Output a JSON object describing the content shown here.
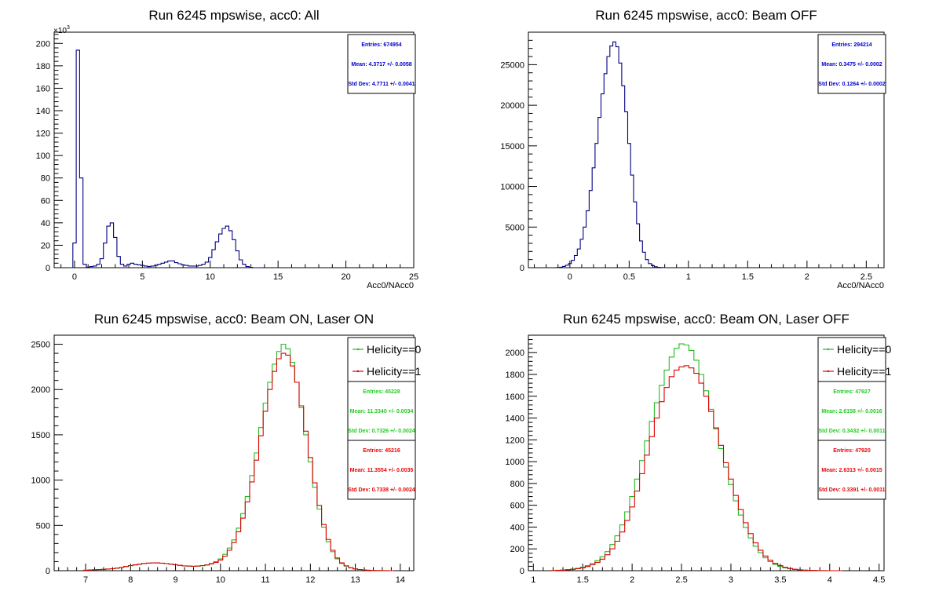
{
  "panels": [
    {
      "title": "Run 6245 mpswise, acc0: All",
      "xlabel": "Acc0/NAcc0",
      "xlim": [
        -1.5,
        25
      ],
      "ylim": [
        0,
        210000
      ],
      "xticks": [
        0,
        5,
        10,
        15,
        20,
        25
      ],
      "yticks": [
        0,
        20000,
        40000,
        60000,
        80000,
        100000,
        120000,
        140000,
        160000,
        180000,
        200000
      ],
      "ytick_labels": [
        "0",
        "20",
        "40",
        "60",
        "80",
        "100",
        "120",
        "140",
        "160",
        "180",
        "200"
      ],
      "yexponent": "×10",
      "yexponent_power": "3",
      "legend": [],
      "stats": [
        {
          "color": "#0000cc",
          "entries": "Entries: 674954",
          "mean": "Mean: 4.3717 +/- 0.0058",
          "std": "Std Dev: 4.7711 +/- 0.0041"
        }
      ]
    },
    {
      "title": "Run 6245 mpswise, acc0: Beam OFF",
      "xlabel": "Acc0/NAcc0",
      "xlim": [
        -0.35,
        2.65
      ],
      "ylim": [
        0,
        29000
      ],
      "xticks": [
        0,
        0.5,
        1,
        1.5,
        2,
        2.5
      ],
      "xtick_labels": [
        "0",
        "0.5",
        "1",
        "1.5",
        "2",
        "2.5"
      ],
      "yticks": [
        0,
        5000,
        10000,
        15000,
        20000,
        25000
      ],
      "ytick_labels": [
        "0",
        "5000",
        "10000",
        "15000",
        "20000",
        "25000"
      ],
      "legend": [],
      "stats": [
        {
          "color": "#0000cc",
          "entries": "Entries: 294214",
          "mean": "Mean: 0.3475 +/- 0.0002",
          "std": "Std Dev: 0.1264 +/- 0.0002"
        }
      ]
    },
    {
      "title": "Run 6245 mpswise, acc0: Beam ON, Laser ON",
      "xlabel": "",
      "xlim": [
        6.3,
        14.3
      ],
      "ylim": [
        0,
        2600
      ],
      "xticks": [
        7,
        8,
        9,
        10,
        11,
        12,
        13,
        14
      ],
      "yticks": [
        0,
        500,
        1000,
        1500,
        2000,
        2500
      ],
      "ytick_labels": [
        "0",
        "500",
        "1000",
        "1500",
        "2000",
        "2500"
      ],
      "legend": [
        {
          "label": "Helicity==0",
          "color": "#22bb22"
        },
        {
          "label": "Helicity==1",
          "color": "#dd0000"
        }
      ],
      "stats": [
        {
          "color": "#22cc22",
          "entries": "Entries: 45228",
          "mean": "Mean: 11.3340 +/- 0.0034",
          "std": "Std Dev: 0.7326 +/- 0.0024"
        },
        {
          "color": "#ee0000",
          "entries": "Entries: 45216",
          "mean": "Mean: 11.3554 +/- 0.0035",
          "std": "Std Dev: 0.7338 +/- 0.0024"
        }
      ]
    },
    {
      "title": "Run 6245 mpswise, acc0: Beam ON, Laser OFF",
      "xlabel": "",
      "xlim": [
        0.95,
        4.55
      ],
      "ylim": [
        0,
        2160
      ],
      "xticks": [
        1,
        1.5,
        2,
        2.5,
        3,
        3.5,
        4,
        4.5
      ],
      "yticks": [
        0,
        200,
        400,
        600,
        800,
        1000,
        1200,
        1400,
        1600,
        1800,
        2000
      ],
      "ytick_labels": [
        "0",
        "200",
        "400",
        "600",
        "800",
        "1000",
        "1200",
        "1400",
        "1600",
        "1800",
        "2000"
      ],
      "legend": [
        {
          "label": "Helicity==0",
          "color": "#22bb22"
        },
        {
          "label": "Helicity==1",
          "color": "#dd0000"
        }
      ],
      "stats": [
        {
          "color": "#22cc22",
          "entries": "Entries: 47927",
          "mean": "Mean: 2.6158 +/- 0.0016",
          "std": "Std Dev: 0.3432 +/- 0.0011"
        },
        {
          "color": "#ee0000",
          "entries": "Entries: 47920",
          "mean": "Mean: 2.6313 +/- 0.0015",
          "std": "Std Dev: 0.3391 +/- 0.0011"
        }
      ]
    }
  ],
  "chart_data": [
    {
      "type": "line",
      "title": "Run 6245 mpswise, acc0: All",
      "xlabel": "Acc0/NAcc0",
      "ylabel": "",
      "xlim": [
        -1.5,
        25
      ],
      "ylim": [
        0,
        210000
      ],
      "step": "histogram",
      "series": [
        {
          "color": "#000080",
          "x": [
            -0.25,
            0,
            0.25,
            0.5,
            0.75,
            1,
            1.25,
            1.5,
            1.75,
            2,
            2.25,
            2.5,
            2.75,
            3,
            3.25,
            3.5,
            3.75,
            4,
            4.25,
            4.5,
            4.75,
            5,
            5.25,
            5.5,
            5.75,
            6,
            6.25,
            6.5,
            6.75,
            7,
            7.25,
            7.5,
            7.75,
            8,
            8.25,
            8.5,
            8.75,
            9,
            9.25,
            9.5,
            9.75,
            10,
            10.25,
            10.5,
            10.75,
            11,
            11.25,
            11.5,
            11.75,
            12,
            12.25,
            12.5,
            12.75,
            13,
            13.25,
            13.5
          ],
          "y": [
            0,
            22000,
            194000,
            80000,
            3000,
            500,
            1000,
            1500,
            3000,
            8000,
            22000,
            37000,
            40000,
            27000,
            10000,
            3000,
            1500,
            3000,
            4000,
            3000,
            2500,
            2000,
            1500,
            1000,
            1500,
            2000,
            3000,
            4000,
            5000,
            6000,
            6000,
            4500,
            3500,
            2500,
            2000,
            1500,
            1500,
            1500,
            2000,
            3000,
            5000,
            9000,
            16000,
            23000,
            30000,
            35000,
            37000,
            33000,
            25000,
            15000,
            7000,
            3000,
            1000,
            300,
            0,
            0
          ]
        }
      ]
    },
    {
      "type": "line",
      "title": "Run 6245 mpswise, acc0: Beam OFF",
      "xlabel": "Acc0/NAcc0",
      "ylabel": "",
      "xlim": [
        -0.35,
        2.65
      ],
      "ylim": [
        0,
        29000
      ],
      "step": "histogram",
      "series": [
        {
          "color": "#000080",
          "x": [
            -0.1,
            -0.075,
            -0.05,
            -0.025,
            0,
            0.025,
            0.05,
            0.075,
            0.1,
            0.125,
            0.15,
            0.175,
            0.2,
            0.225,
            0.25,
            0.275,
            0.3,
            0.325,
            0.35,
            0.375,
            0.4,
            0.425,
            0.45,
            0.475,
            0.5,
            0.525,
            0.55,
            0.575,
            0.6,
            0.625,
            0.65,
            0.675,
            0.7,
            0.725,
            0.75,
            0.775,
            0.8
          ],
          "y": [
            20,
            60,
            150,
            300,
            500,
            900,
            1500,
            2300,
            3500,
            5000,
            7000,
            9500,
            12300,
            15300,
            18500,
            21400,
            23900,
            26000,
            27300,
            27800,
            27200,
            25200,
            22400,
            19200,
            15300,
            11400,
            8100,
            5400,
            3300,
            1900,
            1000,
            500,
            250,
            120,
            50,
            20,
            0
          ]
        }
      ]
    },
    {
      "type": "line",
      "title": "Run 6245 mpswise, acc0: Beam ON, Laser ON",
      "xlabel": "",
      "ylabel": "",
      "xlim": [
        6.3,
        14.3
      ],
      "ylim": [
        0,
        2600
      ],
      "step": "histogram",
      "series": [
        {
          "name": "Helicity==0",
          "color": "#22bb22",
          "x": [
            7,
            7.1,
            7.2,
            7.3,
            7.4,
            7.5,
            7.6,
            7.7,
            7.8,
            7.9,
            8,
            8.1,
            8.2,
            8.3,
            8.4,
            8.5,
            8.6,
            8.7,
            8.8,
            8.9,
            9,
            9.1,
            9.2,
            9.3,
            9.4,
            9.5,
            9.6,
            9.7,
            9.8,
            9.9,
            10,
            10.1,
            10.2,
            10.3,
            10.4,
            10.5,
            10.6,
            10.7,
            10.8,
            10.9,
            11,
            11.1,
            11.2,
            11.3,
            11.4,
            11.5,
            11.6,
            11.7,
            11.8,
            11.9,
            12,
            12.1,
            12.2,
            12.3,
            12.4,
            12.5,
            12.6,
            12.7,
            12.8,
            12.9,
            13,
            13.1,
            13.2,
            13.3,
            13.4,
            13.5,
            13.6,
            13.7,
            13.8
          ],
          "y": [
            5,
            8,
            10,
            12,
            15,
            18,
            22,
            28,
            35,
            45,
            55,
            62,
            70,
            78,
            82,
            85,
            85,
            82,
            78,
            72,
            65,
            58,
            52,
            50,
            48,
            50,
            55,
            65,
            80,
            100,
            130,
            180,
            250,
            340,
            470,
            630,
            820,
            1050,
            1300,
            1580,
            1850,
            2080,
            2280,
            2420,
            2500,
            2450,
            2300,
            2080,
            1800,
            1500,
            1200,
            920,
            680,
            480,
            320,
            210,
            130,
            80,
            50,
            30,
            18,
            12,
            8,
            5,
            3,
            2,
            1,
            1,
            0
          ]
        },
        {
          "name": "Helicity==1",
          "color": "#dd0000",
          "x": [
            7,
            7.1,
            7.2,
            7.3,
            7.4,
            7.5,
            7.6,
            7.7,
            7.8,
            7.9,
            8,
            8.1,
            8.2,
            8.3,
            8.4,
            8.5,
            8.6,
            8.7,
            8.8,
            8.9,
            9,
            9.1,
            9.2,
            9.3,
            9.4,
            9.5,
            9.6,
            9.7,
            9.8,
            9.9,
            10,
            10.1,
            10.2,
            10.3,
            10.4,
            10.5,
            10.6,
            10.7,
            10.8,
            10.9,
            11,
            11.1,
            11.2,
            11.3,
            11.4,
            11.5,
            11.6,
            11.7,
            11.8,
            11.9,
            12,
            12.1,
            12.2,
            12.3,
            12.4,
            12.5,
            12.6,
            12.7,
            12.8,
            12.9,
            13,
            13.1,
            13.2,
            13.3,
            13.4,
            13.5,
            13.6,
            13.7,
            13.8
          ],
          "y": [
            5,
            8,
            10,
            12,
            15,
            18,
            22,
            28,
            36,
            46,
            56,
            64,
            72,
            80,
            84,
            87,
            86,
            83,
            79,
            73,
            66,
            59,
            53,
            51,
            49,
            51,
            56,
            62,
            75,
            92,
            118,
            160,
            225,
            310,
            430,
            580,
            760,
            980,
            1220,
            1490,
            1760,
            2000,
            2200,
            2340,
            2400,
            2380,
            2260,
            2080,
            1820,
            1540,
            1250,
            970,
            720,
            510,
            345,
            225,
            140,
            86,
            54,
            33,
            20,
            13,
            8,
            5,
            3,
            2,
            1,
            1,
            0
          ]
        }
      ]
    },
    {
      "type": "line",
      "title": "Run 6245 mpswise, acc0: Beam ON, Laser OFF",
      "xlabel": "",
      "ylabel": "",
      "xlim": [
        0.95,
        4.55
      ],
      "ylim": [
        0,
        2160
      ],
      "step": "histogram",
      "series": [
        {
          "name": "Helicity==0",
          "color": "#22bb22",
          "x": [
            1.2,
            1.25,
            1.3,
            1.35,
            1.4,
            1.45,
            1.5,
            1.55,
            1.6,
            1.65,
            1.7,
            1.75,
            1.8,
            1.85,
            1.9,
            1.95,
            2,
            2.05,
            2.1,
            2.15,
            2.2,
            2.25,
            2.3,
            2.35,
            2.4,
            2.45,
            2.5,
            2.55,
            2.6,
            2.65,
            2.7,
            2.75,
            2.8,
            2.85,
            2.9,
            2.95,
            3,
            3.05,
            3.1,
            3.15,
            3.2,
            3.25,
            3.3,
            3.35,
            3.4,
            3.45,
            3.5,
            3.55,
            3.6,
            3.65,
            3.7,
            3.75,
            3.8,
            3.85,
            3.9,
            3.95,
            4,
            4.05,
            4.1
          ],
          "y": [
            2,
            4,
            6,
            10,
            15,
            22,
            32,
            46,
            66,
            92,
            128,
            175,
            240,
            320,
            420,
            540,
            680,
            840,
            1010,
            1190,
            1370,
            1540,
            1700,
            1840,
            1960,
            2040,
            2080,
            2070,
            2020,
            1930,
            1800,
            1650,
            1480,
            1300,
            1120,
            950,
            790,
            640,
            510,
            395,
            300,
            225,
            165,
            118,
            83,
            57,
            39,
            26,
            17,
            11,
            7,
            4,
            3,
            2,
            1,
            1,
            0,
            0,
            0
          ]
        },
        {
          "name": "Helicity==1",
          "color": "#dd0000",
          "x": [
            1.2,
            1.25,
            1.3,
            1.35,
            1.4,
            1.45,
            1.5,
            1.55,
            1.6,
            1.65,
            1.7,
            1.75,
            1.8,
            1.85,
            1.9,
            1.95,
            2,
            2.05,
            2.1,
            2.15,
            2.2,
            2.25,
            2.3,
            2.35,
            2.4,
            2.45,
            2.5,
            2.55,
            2.6,
            2.65,
            2.7,
            2.75,
            2.8,
            2.85,
            2.9,
            2.95,
            3,
            3.05,
            3.1,
            3.15,
            3.2,
            3.25,
            3.3,
            3.35,
            3.4,
            3.45,
            3.5,
            3.55,
            3.6,
            3.65,
            3.7,
            3.75,
            3.8,
            3.85,
            3.9,
            3.95,
            4,
            4.05,
            4.1
          ],
          "y": [
            1,
            3,
            5,
            8,
            12,
            18,
            26,
            38,
            54,
            76,
            106,
            146,
            200,
            270,
            355,
            460,
            585,
            730,
            890,
            1060,
            1230,
            1400,
            1550,
            1680,
            1780,
            1840,
            1870,
            1880,
            1860,
            1810,
            1720,
            1600,
            1460,
            1310,
            1150,
            990,
            840,
            690,
            560,
            440,
            340,
            255,
            188,
            135,
            96,
            67,
            46,
            31,
            20,
            13,
            8,
            5,
            3,
            2,
            1,
            1,
            0,
            0,
            0
          ]
        }
      ]
    }
  ]
}
